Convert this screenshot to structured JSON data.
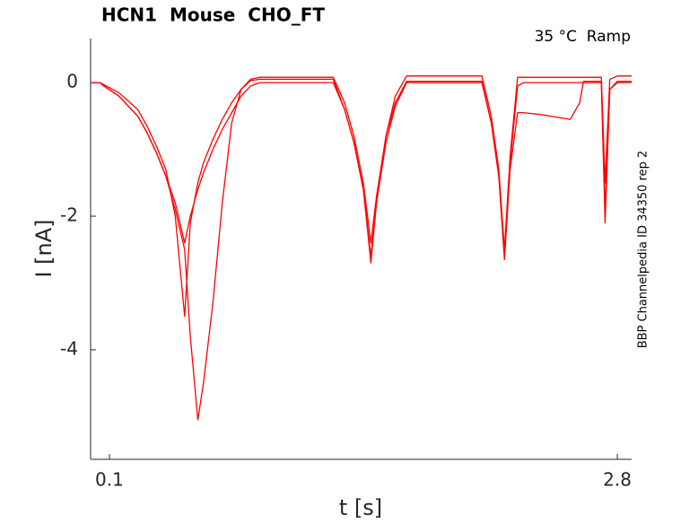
{
  "chart_data": {
    "type": "line",
    "title": "HCN1  Mouse  CHO_FT",
    "annotation": "35 °C  Ramp",
    "side_note": "BBP Channelpedia ID 34350 rep 2",
    "x_label": "t [s]",
    "y_label": "I [nA]",
    "xlim": [
      0,
      2.876
    ],
    "ylim": [
      -5.64,
      0.66
    ],
    "xticks": [
      0.1,
      2.8
    ],
    "yticks": [
      -4,
      -2,
      0
    ],
    "x": [
      0,
      0.05,
      0.07,
      0.15,
      0.25,
      0.3,
      0.35,
      0.4,
      0.45,
      0.5,
      0.53,
      0.57,
      0.6,
      0.65,
      0.7,
      0.75,
      0.8,
      0.85,
      0.9,
      1.0,
      1.1,
      1.29,
      1.35,
      1.4,
      1.45,
      1.49,
      1.52,
      1.57,
      1.62,
      1.68,
      1.8,
      2.08,
      2.13,
      2.17,
      2.2,
      2.23,
      2.27,
      2.3,
      2.4,
      2.55,
      2.6,
      2.62,
      2.7,
      2.715,
      2.735,
      2.76,
      2.8,
      2.876
    ],
    "series": [
      {
        "color": "#ff0000",
        "values": [
          0,
          0,
          -0.05,
          -0.2,
          -0.5,
          -0.75,
          -1.05,
          -1.4,
          -1.8,
          -2.4,
          -2.0,
          -1.6,
          -1.35,
          -1.0,
          -0.7,
          -0.45,
          -0.2,
          -0.05,
          0,
          0,
          0,
          0,
          -0.4,
          -0.9,
          -1.6,
          -2.6,
          -1.8,
          -0.9,
          -0.35,
          0,
          0,
          0,
          -0.6,
          -1.4,
          -2.6,
          -1.2,
          -0.05,
          0,
          0,
          0,
          0,
          0,
          0,
          0,
          -2.1,
          -0.1,
          0,
          0
        ]
      },
      {
        "color": "#ff0000",
        "values": [
          0,
          0,
          -0.05,
          -0.2,
          -0.5,
          -0.75,
          -1.05,
          -1.4,
          -1.9,
          -2.5,
          -3.8,
          -5.05,
          -4.5,
          -3.3,
          -1.8,
          -0.6,
          -0.1,
          0.03,
          0.05,
          0.05,
          0.05,
          0.05,
          -0.4,
          -0.9,
          -1.6,
          -2.7,
          -1.8,
          -0.8,
          -0.3,
          0.02,
          0.02,
          0.02,
          -0.6,
          -1.4,
          -2.65,
          -1.3,
          -0.45,
          -0.45,
          -0.48,
          -0.55,
          -0.3,
          0.02,
          0.02,
          0.02,
          -1.9,
          -0.1,
          0.02,
          0.02
        ]
      },
      {
        "color": "#ff0000",
        "values": [
          0,
          0,
          -0.03,
          -0.15,
          -0.4,
          -0.65,
          -0.95,
          -1.3,
          -2.0,
          -3.5,
          -2.1,
          -1.5,
          -1.2,
          -0.85,
          -0.55,
          -0.3,
          -0.1,
          0.05,
          0.08,
          0.08,
          0.08,
          0.08,
          -0.3,
          -0.8,
          -1.5,
          -2.4,
          -1.7,
          -0.8,
          -0.2,
          0.1,
          0.1,
          0.1,
          -0.5,
          -1.3,
          -2.5,
          -1.1,
          0.08,
          0.08,
          0.08,
          0.08,
          0.08,
          0.08,
          0.08,
          0.08,
          -1.5,
          0.05,
          0.1,
          0.1
        ]
      }
    ]
  }
}
